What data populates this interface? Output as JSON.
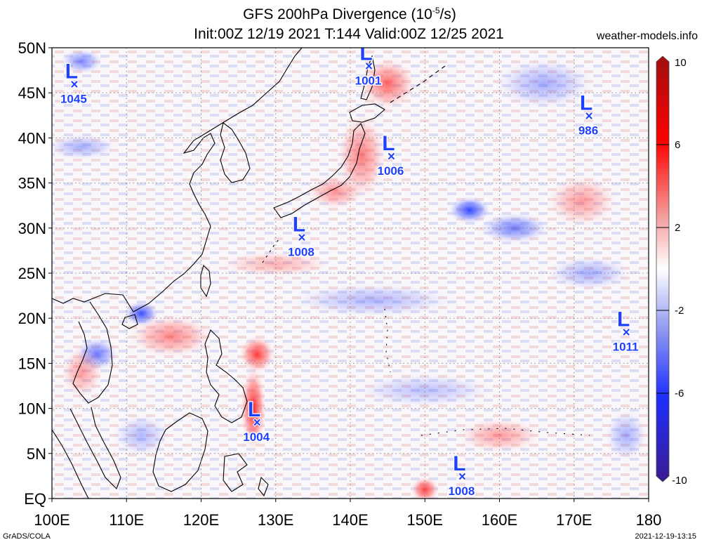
{
  "header": {
    "title_prefix": "GFS 200hPa Divergence (10",
    "title_exp": "-5",
    "title_suffix": "/s)",
    "subtitle": "Init:00Z 12/19 2021 T:144 Valid:00Z 12/25 2021",
    "site": "weather-models.info"
  },
  "footer": {
    "left": "GrADS/COLA",
    "right": "2021-12-19-13:15"
  },
  "map": {
    "lon_range": [
      100,
      180
    ],
    "lat_range": [
      0,
      50
    ],
    "x_ticks": [
      "100E",
      "110E",
      "120E",
      "130E",
      "140E",
      "150E",
      "160E",
      "170E",
      "180"
    ],
    "y_ticks": [
      "EQ",
      "5N",
      "10N",
      "15N",
      "20N",
      "25N",
      "30N",
      "35N",
      "40N",
      "45N",
      "50N"
    ],
    "grid": true,
    "grid_style": "dotted",
    "lows": [
      {
        "label": "L",
        "pressure": "1045",
        "lon": 103,
        "lat": 46
      },
      {
        "label": "L",
        "pressure": "1001",
        "lon": 142.5,
        "lat": 48
      },
      {
        "label": "L",
        "pressure": "1006",
        "lon": 145.5,
        "lat": 38
      },
      {
        "label": "L",
        "pressure": "986",
        "lon": 172,
        "lat": 42.5
      },
      {
        "label": "L",
        "pressure": "1008",
        "lon": 133.5,
        "lat": 29
      },
      {
        "label": "L",
        "pressure": "1011",
        "lon": 177,
        "lat": 18.5
      },
      {
        "label": "L",
        "pressure": "1004",
        "lon": 127.5,
        "lat": 8.5
      },
      {
        "label": "L",
        "pressure": "1008",
        "lon": 155,
        "lat": 2.5
      }
    ],
    "positive_regions": [
      {
        "lon": 127,
        "lat": 10,
        "rx": 1.8,
        "ry": 5,
        "intensity": 1
      },
      {
        "lon": 127.5,
        "lat": 16,
        "rx": 2.5,
        "ry": 2.2,
        "intensity": 0.9
      },
      {
        "lon": 141.5,
        "lat": 38,
        "rx": 3.5,
        "ry": 5,
        "intensity": 0.6
      },
      {
        "lon": 145,
        "lat": 46,
        "rx": 4,
        "ry": 3,
        "intensity": 0.7
      },
      {
        "lon": 150,
        "lat": 1,
        "rx": 2,
        "ry": 1.5,
        "intensity": 0.9
      },
      {
        "lon": 116,
        "lat": 18,
        "rx": 6,
        "ry": 2.5,
        "intensity": 0.55
      },
      {
        "lon": 171,
        "lat": 33,
        "rx": 5,
        "ry": 3,
        "intensity": 0.45
      },
      {
        "lon": 104,
        "lat": 14,
        "rx": 3,
        "ry": 3,
        "intensity": 0.45
      },
      {
        "lon": 160,
        "lat": 7,
        "rx": 6,
        "ry": 2,
        "intensity": 0.45
      },
      {
        "lon": 138,
        "lat": 34,
        "rx": 4,
        "ry": 2,
        "intensity": 0.5
      },
      {
        "lon": 130,
        "lat": 26,
        "rx": 8,
        "ry": 1.5,
        "intensity": 0.35
      }
    ],
    "negative_regions": [
      {
        "lon": 156,
        "lat": 32,
        "rx": 3,
        "ry": 1.6,
        "intensity": 0.95
      },
      {
        "lon": 162,
        "lat": 30,
        "rx": 5,
        "ry": 1.8,
        "intensity": 0.65
      },
      {
        "lon": 112,
        "lat": 20.5,
        "rx": 2.5,
        "ry": 1.5,
        "intensity": 0.9
      },
      {
        "lon": 106,
        "lat": 16,
        "rx": 3,
        "ry": 2,
        "intensity": 0.7
      },
      {
        "lon": 104,
        "lat": 48.5,
        "rx": 3,
        "ry": 1.5,
        "intensity": 0.6
      },
      {
        "lon": 104,
        "lat": 39,
        "rx": 5,
        "ry": 1.5,
        "intensity": 0.4
      },
      {
        "lon": 166,
        "lat": 46,
        "rx": 7,
        "ry": 3,
        "intensity": 0.4
      },
      {
        "lon": 143,
        "lat": 22,
        "rx": 12,
        "ry": 2,
        "intensity": 0.35
      },
      {
        "lon": 172,
        "lat": 25,
        "rx": 6,
        "ry": 2,
        "intensity": 0.4
      },
      {
        "lon": 112,
        "lat": 7,
        "rx": 4,
        "ry": 2.5,
        "intensity": 0.35
      },
      {
        "lon": 150,
        "lat": 12,
        "rx": 10,
        "ry": 2,
        "intensity": 0.3
      },
      {
        "lon": 177,
        "lat": 7,
        "rx": 3,
        "ry": 3,
        "intensity": 0.4
      }
    ]
  },
  "colorbar": {
    "max_label": "10",
    "min_label": "-10",
    "tick_labels": [
      "6",
      "2",
      "-2",
      "-6"
    ],
    "tick_values": [
      6,
      2,
      -2,
      -6
    ],
    "range": [
      -10,
      10
    ],
    "colors": {
      "top": "#a01010",
      "high": "#ff0000",
      "mid_high": "#f4a0a0",
      "zero": "#ffffff",
      "mid_low": "#a0a8f0",
      "low": "#1e30ff",
      "bottom": "#3b1a90"
    }
  },
  "colors": {
    "positive": "#ff1a1a",
    "negative": "#1a30ff",
    "low_marker": "#1e40ff",
    "coast": "#000000",
    "grid": "#8a8a8a"
  }
}
